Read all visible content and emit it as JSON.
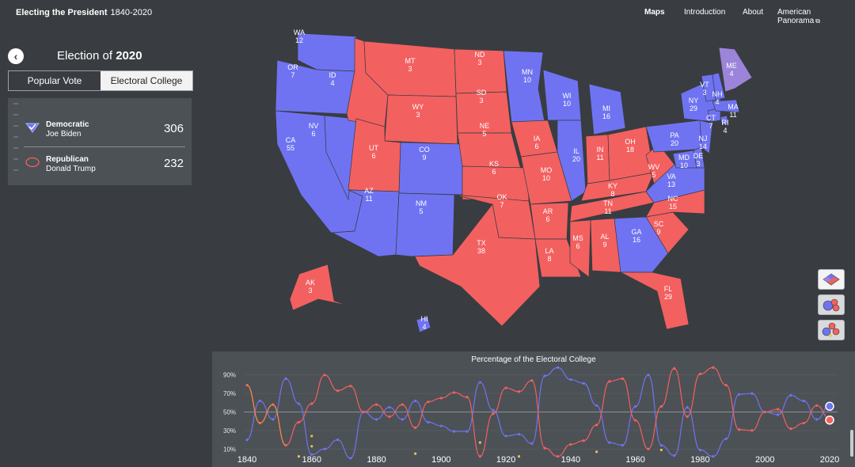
{
  "header": {
    "brand": "Electing the President",
    "years": "1840-2020",
    "nav": {
      "maps": "Maps",
      "introduction": "Introduction",
      "about": "About",
      "panorama": "American Panorama"
    }
  },
  "sidebar": {
    "back_icon": "chevron-left-icon",
    "title_prefix": "Election of",
    "title_year": "2020",
    "tabs": {
      "popular": "Popular Vote",
      "electoral": "Electoral College"
    },
    "results": [
      {
        "party": "Democratic",
        "candidate": "Joe Biden",
        "votes": "306",
        "icon": "check-shield-icon"
      },
      {
        "party": "Republican",
        "candidate": "Donald Trump",
        "votes": "232",
        "icon": "oval-icon"
      }
    ]
  },
  "colors": {
    "dem": "#6f73f2",
    "rep": "#f36060",
    "split": "#9b84d9",
    "bg": "#393d41",
    "panel": "#4c5155"
  },
  "map": {
    "states": [
      {
        "abbr": "WA",
        "ev": "12",
        "party": "dem"
      },
      {
        "abbr": "OR",
        "ev": "7",
        "party": "dem"
      },
      {
        "abbr": "CA",
        "ev": "55",
        "party": "dem"
      },
      {
        "abbr": "NV",
        "ev": "6",
        "party": "dem"
      },
      {
        "abbr": "ID",
        "ev": "4",
        "party": "rep"
      },
      {
        "abbr": "MT",
        "ev": "3",
        "party": "rep"
      },
      {
        "abbr": "WY",
        "ev": "3",
        "party": "rep"
      },
      {
        "abbr": "UT",
        "ev": "6",
        "party": "rep"
      },
      {
        "abbr": "CO",
        "ev": "9",
        "party": "dem"
      },
      {
        "abbr": "AZ",
        "ev": "11",
        "party": "dem"
      },
      {
        "abbr": "NM",
        "ev": "5",
        "party": "dem"
      },
      {
        "abbr": "ND",
        "ev": "3",
        "party": "rep"
      },
      {
        "abbr": "SD",
        "ev": "3",
        "party": "rep"
      },
      {
        "abbr": "NE",
        "ev": "5",
        "party": "rep"
      },
      {
        "abbr": "KS",
        "ev": "6",
        "party": "rep"
      },
      {
        "abbr": "OK",
        "ev": "7",
        "party": "rep"
      },
      {
        "abbr": "TX",
        "ev": "38",
        "party": "rep"
      },
      {
        "abbr": "MN",
        "ev": "10",
        "party": "dem"
      },
      {
        "abbr": "IA",
        "ev": "6",
        "party": "rep"
      },
      {
        "abbr": "MO",
        "ev": "10",
        "party": "rep"
      },
      {
        "abbr": "AR",
        "ev": "6",
        "party": "rep"
      },
      {
        "abbr": "LA",
        "ev": "8",
        "party": "rep"
      },
      {
        "abbr": "WI",
        "ev": "10",
        "party": "dem"
      },
      {
        "abbr": "IL",
        "ev": "20",
        "party": "dem"
      },
      {
        "abbr": "MI",
        "ev": "16",
        "party": "dem"
      },
      {
        "abbr": "IN",
        "ev": "11",
        "party": "rep"
      },
      {
        "abbr": "OH",
        "ev": "18",
        "party": "rep"
      },
      {
        "abbr": "KY",
        "ev": "8",
        "party": "rep"
      },
      {
        "abbr": "TN",
        "ev": "11",
        "party": "rep"
      },
      {
        "abbr": "MS",
        "ev": "6",
        "party": "rep"
      },
      {
        "abbr": "AL",
        "ev": "9",
        "party": "rep"
      },
      {
        "abbr": "GA",
        "ev": "16",
        "party": "dem"
      },
      {
        "abbr": "FL",
        "ev": "29",
        "party": "rep"
      },
      {
        "abbr": "SC",
        "ev": "9",
        "party": "rep"
      },
      {
        "abbr": "NC",
        "ev": "15",
        "party": "rep"
      },
      {
        "abbr": "VA",
        "ev": "13",
        "party": "dem"
      },
      {
        "abbr": "WV",
        "ev": "5",
        "party": "rep"
      },
      {
        "abbr": "PA",
        "ev": "20",
        "party": "dem"
      },
      {
        "abbr": "NY",
        "ev": "29",
        "party": "dem"
      },
      {
        "abbr": "NJ",
        "ev": "14",
        "party": "dem"
      },
      {
        "abbr": "DE",
        "ev": "3",
        "party": "dem"
      },
      {
        "abbr": "MD",
        "ev": "10",
        "party": "dem"
      },
      {
        "abbr": "CT",
        "ev": "7",
        "party": "dem"
      },
      {
        "abbr": "RI",
        "ev": "4",
        "party": "dem"
      },
      {
        "abbr": "MA",
        "ev": "11",
        "party": "dem"
      },
      {
        "abbr": "VT",
        "ev": "3",
        "party": "dem"
      },
      {
        "abbr": "NH",
        "ev": "4",
        "party": "dem"
      },
      {
        "abbr": "ME",
        "ev": "4",
        "party": "split"
      },
      {
        "abbr": "AK",
        "ev": "3",
        "party": "rep"
      },
      {
        "abbr": "HI",
        "ev": "4",
        "party": "dem"
      }
    ]
  },
  "map_controls": [
    "map-view-icon",
    "bubble-view-icon",
    "cartogram-view-icon"
  ],
  "chart_data": {
    "type": "line",
    "title": "Percentage of the Electoral College",
    "x": [
      1840,
      1844,
      1848,
      1852,
      1856,
      1860,
      1864,
      1868,
      1872,
      1876,
      1880,
      1884,
      1888,
      1892,
      1896,
      1900,
      1904,
      1908,
      1912,
      1916,
      1920,
      1924,
      1928,
      1932,
      1936,
      1940,
      1944,
      1948,
      1952,
      1956,
      1960,
      1964,
      1968,
      1972,
      1976,
      1980,
      1984,
      1988,
      1992,
      1996,
      2000,
      2004,
      2008,
      2012,
      2016,
      2020
    ],
    "xticks": [
      "1840",
      "1860",
      "1880",
      "1900",
      "1920",
      "1940",
      "1960",
      "1980",
      "2000",
      "2020"
    ],
    "yticks": [
      "10%",
      "30%",
      "50%",
      "70%",
      "90%"
    ],
    "ylim": [
      0,
      100
    ],
    "series": [
      {
        "party": "dem",
        "values": [
          20,
          62,
          42,
          86,
          59,
          4,
          10,
          20,
          0,
          50,
          42,
          55,
          42,
          62,
          39,
          35,
          29,
          29,
          82,
          52,
          24,
          26,
          16,
          89,
          98,
          85,
          81,
          57,
          17,
          14,
          56,
          90,
          14,
          3,
          55,
          9,
          2,
          21,
          69,
          70,
          50,
          47,
          68,
          62,
          42,
          57
        ]
      },
      {
        "party": "rep",
        "values": [
          79,
          38,
          58,
          14,
          39,
          59,
          90,
          73,
          78,
          50,
          58,
          45,
          58,
          33,
          61,
          65,
          71,
          66,
          2,
          48,
          76,
          72,
          84,
          11,
          2,
          15,
          19,
          36,
          83,
          86,
          41,
          10,
          56,
          97,
          45,
          91,
          98,
          79,
          31,
          30,
          50,
          53,
          32,
          38,
          57,
          43
        ]
      },
      {
        "party": "other_a",
        "values": [
          null,
          null,
          null,
          null,
          null,
          null,
          null,
          null,
          null,
          null,
          null,
          null,
          null,
          null,
          null,
          null,
          null,
          null,
          null,
          null,
          null,
          null,
          null,
          null,
          null,
          null,
          null,
          null,
          null,
          null,
          null,
          null,
          null,
          null,
          null,
          null,
          null,
          null,
          null,
          null,
          null,
          null,
          null,
          null,
          null,
          null
        ]
      }
    ],
    "third_party_points": [
      {
        "x": 1856,
        "y": 2
      },
      {
        "x": 1860,
        "y": 24
      },
      {
        "x": 1860,
        "y": 13
      },
      {
        "x": 1892,
        "y": 5
      },
      {
        "x": 1912,
        "y": 17
      },
      {
        "x": 1924,
        "y": 2
      },
      {
        "x": 1948,
        "y": 7
      },
      {
        "x": 1968,
        "y": 9
      }
    ],
    "current_year": 2020
  }
}
